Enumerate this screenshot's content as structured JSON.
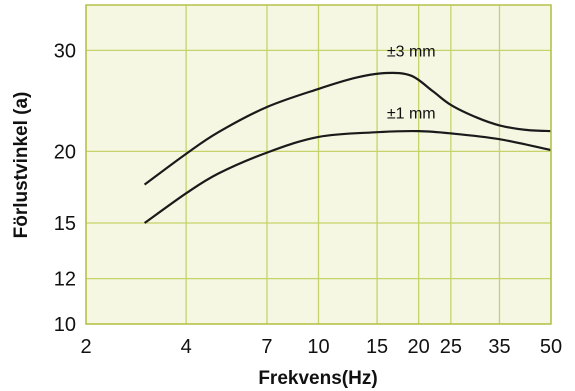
{
  "chart_data": {
    "type": "line",
    "title": "",
    "xlabel": "Frekvens(Hz)",
    "ylabel": "Förlustvinkel (a)",
    "x_scale": "log",
    "y_scale": "log",
    "xlim": [
      2,
      50
    ],
    "ylim": [
      10,
      36
    ],
    "x_ticks": [
      2,
      4,
      7,
      10,
      15,
      20,
      25,
      35,
      50
    ],
    "y_ticks": [
      10,
      12,
      15,
      20,
      30
    ],
    "grid": true,
    "colors": {
      "plot_background": "#f5f7e3",
      "grid": "#c8d26a",
      "curve": "#1a1a1a"
    },
    "series": [
      {
        "name": "±3 mm",
        "points": [
          [
            3,
            17.5
          ],
          [
            4,
            19.8
          ],
          [
            5,
            21.6
          ],
          [
            7,
            23.9
          ],
          [
            10,
            25.7
          ],
          [
            13,
            26.9
          ],
          [
            16,
            27.4
          ],
          [
            19,
            27.1
          ],
          [
            22,
            25.5
          ],
          [
            25,
            24.1
          ],
          [
            30,
            22.9
          ],
          [
            35,
            22.2
          ],
          [
            42,
            21.8
          ],
          [
            50,
            21.7
          ]
        ]
      },
      {
        "name": "±1 mm",
        "points": [
          [
            3,
            15.0
          ],
          [
            4,
            16.9
          ],
          [
            5,
            18.3
          ],
          [
            7,
            19.9
          ],
          [
            10,
            21.2
          ],
          [
            15,
            21.6
          ],
          [
            20,
            21.7
          ],
          [
            25,
            21.5
          ],
          [
            35,
            21.0
          ],
          [
            50,
            20.1
          ]
        ]
      }
    ]
  }
}
